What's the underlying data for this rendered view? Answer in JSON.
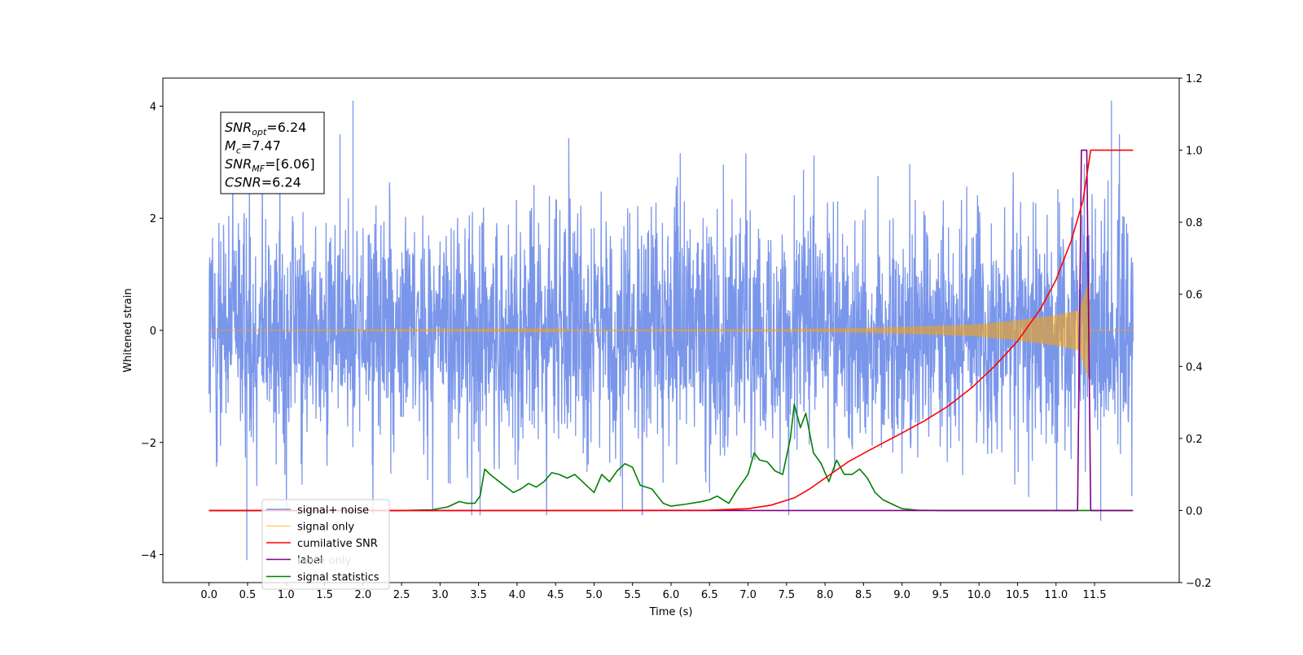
{
  "chart_data": {
    "type": "line",
    "xlabel": "Time (s)",
    "ylabel": "Whitened strain",
    "xlim": [
      -0.6,
      12.6
    ],
    "ylim": [
      -4.5,
      4.5
    ],
    "y2lim": [
      -0.2,
      1.2
    ],
    "x_tick_values": [
      0.0,
      0.5,
      1.0,
      1.5,
      2.0,
      2.5,
      3.0,
      3.5,
      4.0,
      4.5,
      5.0,
      5.5,
      6.0,
      6.5,
      7.0,
      7.5,
      8.0,
      8.5,
      9.0,
      9.5,
      10.0,
      10.5,
      11.0,
      11.5
    ],
    "x_tick_labels": [
      "0.0",
      "0.5",
      "1.0",
      "1.5",
      "2.0",
      "2.5",
      "3.0",
      "3.5",
      "4.0",
      "4.5",
      "5.0",
      "5.5",
      "6.0",
      "6.5",
      "7.0",
      "7.5",
      "8.0",
      "8.5",
      "9.0",
      "9.5",
      "10.0",
      "10.5",
      "11.0",
      "11.5"
    ],
    "y_tick_values": [
      -4,
      -2,
      0,
      2,
      4
    ],
    "y_tick_labels": [
      "−4",
      "−2",
      "0",
      "2",
      "4"
    ],
    "y2_tick_values": [
      -0.2,
      0.0,
      0.2,
      0.4,
      0.6,
      0.8,
      1.0,
      1.2
    ],
    "y2_tick_labels": [
      "−0.2",
      "0.0",
      "0.2",
      "0.4",
      "0.6",
      "0.8",
      "1.0",
      "1.2"
    ],
    "grid": false,
    "legend_position": "lower-left",
    "annotation_lines": [
      {
        "base": "SNR",
        "sub": "opt",
        "rest": "=6.24"
      },
      {
        "base": "M",
        "sub": "c",
        "rest": "=7.47"
      },
      {
        "base": "SNR",
        "sub": "MF",
        "rest": "=[6.06]"
      },
      {
        "base": "CSNR",
        "sub": "",
        "rest": "=6.24"
      }
    ],
    "series": [
      {
        "name": "signal+ noise",
        "axis": "left",
        "color": "#4169e1",
        "opacity": 0.7,
        "x_range": [
          0.0,
          12.0
        ],
        "amplitude_typical": 1.7,
        "peak_values": [
          [
            1.87,
            4.1
          ],
          [
            11.72,
            4.1
          ],
          [
            0.49,
            -4.1
          ],
          [
            11.58,
            -3.4
          ],
          [
            3.52,
            -3.3
          ],
          [
            5.37,
            -3.2
          ]
        ]
      },
      {
        "name": "signal only",
        "axis": "left",
        "color": "#ffa500",
        "opacity": 0.55,
        "x_range": [
          0.0,
          11.45
        ],
        "envelope": [
          [
            0.0,
            0.0
          ],
          [
            7.5,
            0.02
          ],
          [
            8.5,
            0.04
          ],
          [
            9.5,
            0.08
          ],
          [
            10.0,
            0.11
          ],
          [
            10.5,
            0.18
          ],
          [
            11.0,
            0.27
          ],
          [
            11.3,
            0.36
          ],
          [
            11.43,
            0.9
          ],
          [
            11.45,
            0.0
          ]
        ]
      },
      {
        "name": "cumilative SNR",
        "axis": "right",
        "color": "#ff0000",
        "x": [
          0,
          5,
          6.5,
          7.0,
          7.3,
          7.6,
          7.8,
          8.0,
          8.3,
          8.6,
          9.0,
          9.3,
          9.6,
          9.9,
          10.2,
          10.5,
          10.8,
          11.0,
          11.2,
          11.35,
          11.45,
          12.0
        ],
        "y": [
          0,
          0,
          0.001,
          0.005,
          0.015,
          0.035,
          0.06,
          0.09,
          0.135,
          0.17,
          0.215,
          0.25,
          0.29,
          0.34,
          0.4,
          0.47,
          0.56,
          0.64,
          0.75,
          0.86,
          1.0,
          1.0
        ]
      },
      {
        "name": "label",
        "axis": "right",
        "color": "#800080",
        "x": [
          0.0,
          11.28,
          11.33,
          11.4,
          11.45,
          12.0
        ],
        "y": [
          0,
          0,
          1.0,
          1.0,
          0,
          0
        ]
      },
      {
        "name": "noise only",
        "axis": "right",
        "color": "#ffffff",
        "x": [],
        "y": []
      },
      {
        "name": "signal statistics",
        "axis": "right",
        "color": "#008000",
        "x": [
          0.0,
          2.5,
          2.9,
          3.1,
          3.25,
          3.35,
          3.45,
          3.52,
          3.58,
          3.65,
          3.8,
          3.95,
          4.05,
          4.15,
          4.25,
          4.35,
          4.45,
          4.55,
          4.65,
          4.75,
          4.9,
          5.0,
          5.1,
          5.2,
          5.3,
          5.4,
          5.5,
          5.6,
          5.75,
          5.9,
          6.0,
          6.2,
          6.4,
          6.5,
          6.6,
          6.75,
          6.85,
          6.95,
          7.0,
          7.08,
          7.15,
          7.25,
          7.35,
          7.45,
          7.55,
          7.6,
          7.68,
          7.75,
          7.85,
          7.95,
          8.05,
          8.15,
          8.25,
          8.35,
          8.45,
          8.55,
          8.65,
          8.75,
          8.85,
          9.0,
          9.2,
          9.5,
          10.0,
          12.0
        ],
        "y": [
          0,
          0,
          0.002,
          0.01,
          0.025,
          0.02,
          0.02,
          0.04,
          0.115,
          0.1,
          0.075,
          0.05,
          0.06,
          0.075,
          0.065,
          0.08,
          0.105,
          0.1,
          0.09,
          0.1,
          0.07,
          0.05,
          0.1,
          0.08,
          0.11,
          0.13,
          0.12,
          0.07,
          0.06,
          0.02,
          0.012,
          0.018,
          0.025,
          0.03,
          0.04,
          0.02,
          0.055,
          0.085,
          0.1,
          0.16,
          0.14,
          0.135,
          0.11,
          0.1,
          0.2,
          0.295,
          0.23,
          0.27,
          0.16,
          0.13,
          0.08,
          0.14,
          0.1,
          0.1,
          0.115,
          0.09,
          0.05,
          0.03,
          0.02,
          0.005,
          0.001,
          0,
          0,
          0
        ]
      }
    ]
  }
}
